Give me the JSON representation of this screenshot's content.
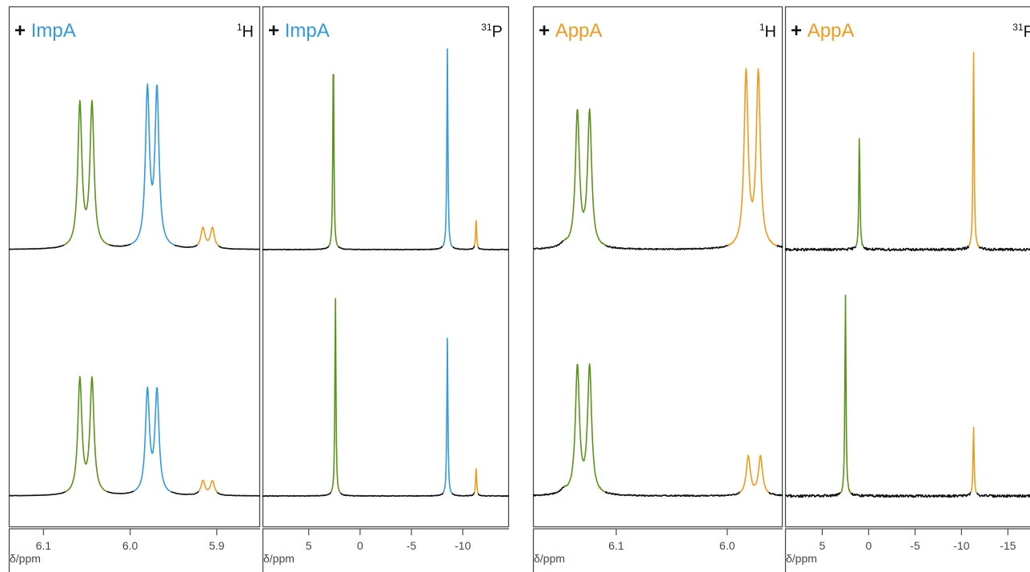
{
  "theme": {
    "green": "#5a9417",
    "blue": "#2f9be0",
    "orange": "#f29a1d",
    "black": "#111111",
    "frame": "#4a4a4a"
  },
  "chart_data": [
    {
      "id": "impa-1h",
      "type": "line",
      "title_prefix": "+ ",
      "title_compound": "ImpA",
      "compound_color": "blue",
      "nucleus_mass": "1",
      "nucleus_symbol": "H",
      "xlabel": "δ/ppm",
      "xlim": [
        6.14,
        5.85
      ],
      "ticks": [
        6.1,
        6.0,
        5.9
      ],
      "tick_labels": [
        "6.1",
        "6.0",
        "5.9"
      ],
      "noise": 0.001,
      "traces": [
        {
          "name": "top",
          "peaks": [
            {
              "ppm": 6.058,
              "height": 0.7,
              "w": 0.0028,
              "color": "green"
            },
            {
              "ppm": 6.044,
              "height": 0.7,
              "w": 0.0028,
              "color": "green"
            },
            {
              "ppm": 5.98,
              "height": 0.76,
              "w": 0.0028,
              "color": "blue"
            },
            {
              "ppm": 5.969,
              "height": 0.76,
              "w": 0.0028,
              "color": "blue"
            },
            {
              "ppm": 5.916,
              "height": 0.1,
              "w": 0.0028,
              "color": "orange"
            },
            {
              "ppm": 5.905,
              "height": 0.1,
              "w": 0.0028,
              "color": "orange"
            }
          ]
        },
        {
          "name": "bottom",
          "peaks": [
            {
              "ppm": 6.058,
              "height": 0.56,
              "w": 0.0028,
              "color": "green"
            },
            {
              "ppm": 6.044,
              "height": 0.56,
              "w": 0.0028,
              "color": "green"
            },
            {
              "ppm": 5.98,
              "height": 0.5,
              "w": 0.0028,
              "color": "blue"
            },
            {
              "ppm": 5.969,
              "height": 0.5,
              "w": 0.0028,
              "color": "blue"
            },
            {
              "ppm": 5.916,
              "height": 0.07,
              "w": 0.0028,
              "color": "orange"
            },
            {
              "ppm": 5.905,
              "height": 0.07,
              "w": 0.0028,
              "color": "orange"
            }
          ]
        }
      ]
    },
    {
      "id": "impa-31p",
      "type": "line",
      "title_prefix": "+ ",
      "title_compound": "ImpA",
      "compound_color": "blue",
      "nucleus_mass": "31",
      "nucleus_symbol": "P",
      "xlabel": "δ/ppm",
      "xlim": [
        9.5,
        -14.5
      ],
      "ticks": [
        5,
        0,
        -5,
        -10
      ],
      "tick_labels": [
        "5",
        "0",
        "-5",
        "-10"
      ],
      "noise": 0.0015,
      "traces": [
        {
          "name": "top",
          "peaks": [
            {
              "ppm": 2.6,
              "height": 0.98,
              "w": 0.06,
              "color": "green"
            },
            {
              "ppm": -8.5,
              "height": 0.98,
              "w": 0.06,
              "color": "blue"
            },
            {
              "ppm": -11.3,
              "height": 0.15,
              "w": 0.06,
              "color": "orange"
            }
          ]
        },
        {
          "name": "bottom",
          "peaks": [
            {
              "ppm": 2.4,
              "height": 0.98,
              "w": 0.06,
              "color": "green"
            },
            {
              "ppm": -8.5,
              "height": 0.77,
              "w": 0.06,
              "color": "blue"
            },
            {
              "ppm": -11.3,
              "height": 0.14,
              "w": 0.06,
              "color": "orange"
            }
          ]
        }
      ]
    },
    {
      "id": "appa-1h",
      "type": "line",
      "title_prefix": "+ ",
      "title_compound": "AppA",
      "compound_color": "orange",
      "nucleus_mass": "1",
      "nucleus_symbol": "H",
      "xlabel": "δ/ppm",
      "xlim": [
        6.175,
        5.95
      ],
      "ticks": [
        6.1,
        6.0
      ],
      "tick_labels": [
        "6.1",
        "6.0"
      ],
      "noise": 0.003,
      "traces": [
        {
          "name": "top",
          "peaks": [
            {
              "ppm": 6.147,
              "height": 0.02,
              "w": 0.004,
              "color": "black"
            },
            {
              "ppm": 6.135,
              "height": 0.66,
              "w": 0.0022,
              "color": "green"
            },
            {
              "ppm": 6.124,
              "height": 0.66,
              "w": 0.0022,
              "color": "green"
            },
            {
              "ppm": 5.983,
              "height": 0.85,
              "w": 0.0022,
              "color": "orange"
            },
            {
              "ppm": 5.972,
              "height": 0.85,
              "w": 0.0022,
              "color": "orange"
            }
          ]
        },
        {
          "name": "bottom",
          "peaks": [
            {
              "ppm": 6.147,
              "height": 0.02,
              "w": 0.004,
              "color": "black"
            },
            {
              "ppm": 6.135,
              "height": 0.62,
              "w": 0.0022,
              "color": "green"
            },
            {
              "ppm": 6.124,
              "height": 0.62,
              "w": 0.0022,
              "color": "green"
            },
            {
              "ppm": 5.981,
              "height": 0.19,
              "w": 0.0022,
              "color": "orange"
            },
            {
              "ppm": 5.97,
              "height": 0.19,
              "w": 0.0022,
              "color": "orange"
            }
          ]
        }
      ]
    },
    {
      "id": "appa-31p",
      "type": "line",
      "title_prefix": "+ ",
      "title_compound": "AppA",
      "compound_color": "orange",
      "nucleus_mass": "31",
      "nucleus_symbol": "P",
      "xlabel": "δ/ppm",
      "xlim": [
        9.0,
        -18.5
      ],
      "ticks": [
        5,
        0,
        -5,
        -10,
        -15
      ],
      "tick_labels": [
        "5",
        "0",
        "-5",
        "-10",
        "-15"
      ],
      "noise": 0.006,
      "traces": [
        {
          "name": "top",
          "peaks": [
            {
              "ppm": 1.0,
              "height": 0.56,
              "w": 0.07,
              "color": "green"
            },
            {
              "ppm": -11.3,
              "height": 0.98,
              "w": 0.07,
              "color": "orange"
            }
          ]
        },
        {
          "name": "bottom",
          "peaks": [
            {
              "ppm": 2.5,
              "height": 0.98,
              "w": 0.07,
              "color": "green"
            },
            {
              "ppm": -11.3,
              "height": 0.34,
              "w": 0.07,
              "color": "orange"
            }
          ]
        }
      ]
    }
  ]
}
